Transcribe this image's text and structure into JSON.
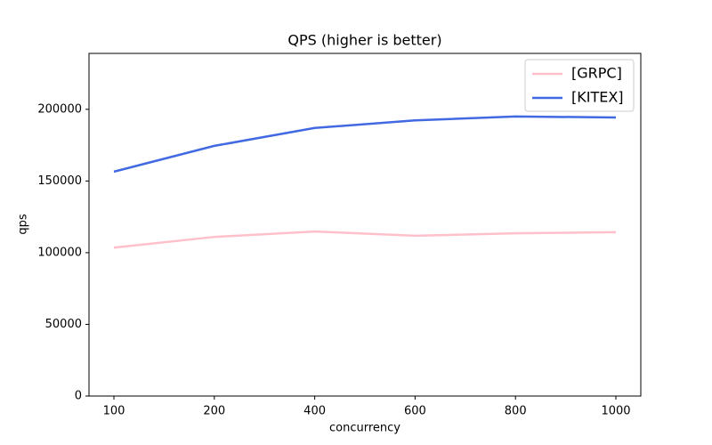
{
  "chart_data": {
    "type": "line",
    "title": "QPS (higher is better)",
    "x_label": "concurrency",
    "y_label": "qps",
    "categories": [
      "100",
      "200",
      "400",
      "600",
      "800",
      "1000"
    ],
    "series": [
      {
        "name": "[GRPC]",
        "color": "#ffc0cb",
        "values": [
          103500,
          111000,
          114800,
          111800,
          113500,
          114300
        ]
      },
      {
        "name": "[KITEX]",
        "color": "#4169e1",
        "values": [
          156500,
          174500,
          187000,
          192300,
          195000,
          194300
        ]
      }
    ],
    "ylim": [
      0,
      239000
    ],
    "yticks": [
      0,
      50000,
      100000,
      150000,
      200000
    ],
    "legend": "upper right",
    "grid": false
  }
}
